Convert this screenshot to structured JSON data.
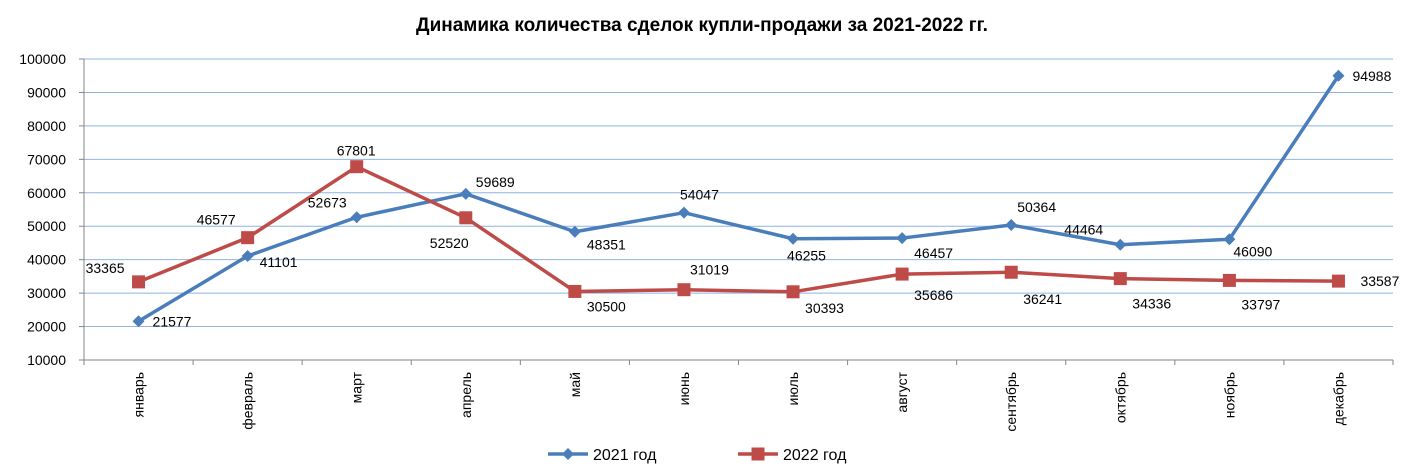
{
  "chart_data": {
    "type": "line",
    "title": "Динамика количества сделок купли-продажи за 2021-2022 гг.",
    "xlabel": "",
    "ylabel": "",
    "categories": [
      "январь",
      "февраль",
      "март",
      "апрель",
      "май",
      "июнь",
      "июль",
      "август",
      "сентябрь",
      "октябрь",
      "ноябрь",
      "декабрь"
    ],
    "ylim": [
      10000,
      100000
    ],
    "yticks": [
      10000,
      20000,
      30000,
      40000,
      50000,
      60000,
      70000,
      80000,
      90000,
      100000
    ],
    "grid": true,
    "legend": "bottom",
    "series": [
      {
        "name": "2021 год",
        "color": "#4a7ebb",
        "marker": "diamond",
        "values": [
          21577,
          41101,
          52673,
          59689,
          48351,
          54047,
          46255,
          46457,
          50364,
          44464,
          46090,
          94988
        ]
      },
      {
        "name": "2022 год",
        "color": "#be4b48",
        "marker": "square",
        "values": [
          33365,
          46577,
          67801,
          52520,
          30500,
          31019,
          30393,
          35686,
          36241,
          34336,
          33797,
          33587
        ]
      }
    ]
  }
}
